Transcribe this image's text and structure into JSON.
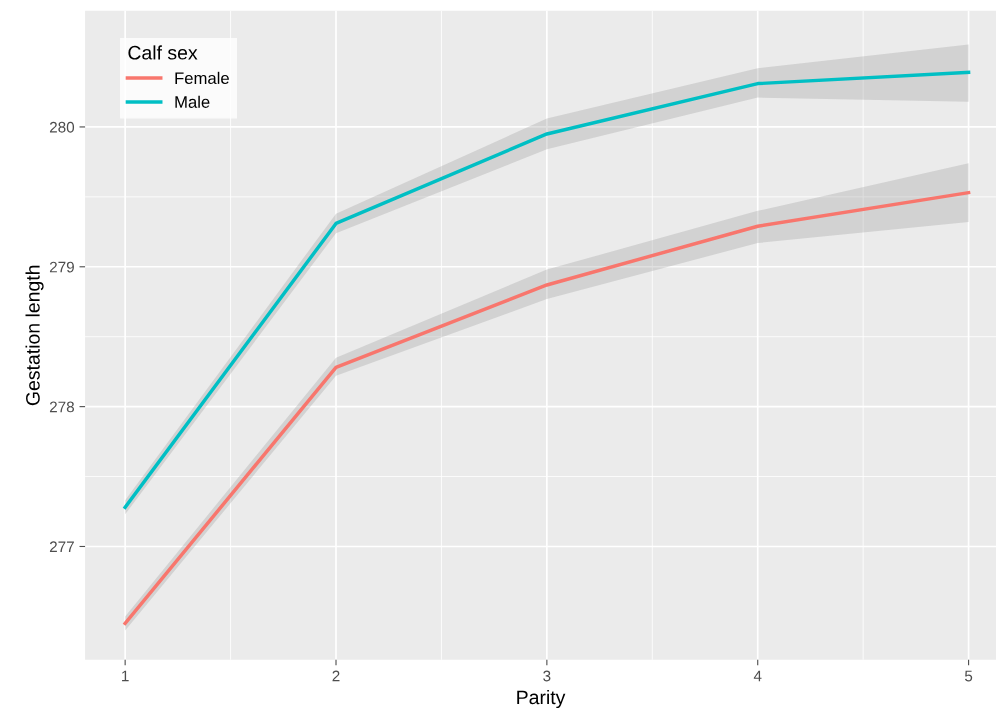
{
  "chart_data": {
    "type": "line",
    "xlabel": "Parity",
    "ylabel": "Gestation length",
    "legend_title": "Calf sex",
    "x": [
      1,
      2,
      3,
      4,
      5
    ],
    "series": [
      {
        "name": "Female",
        "color": "#f8766d",
        "values": [
          276.45,
          278.28,
          278.87,
          279.29,
          279.53
        ],
        "lower": [
          276.4,
          278.22,
          278.77,
          279.17,
          279.32
        ],
        "upper": [
          276.5,
          278.35,
          278.98,
          279.4,
          279.74
        ]
      },
      {
        "name": "Male",
        "color": "#00bfc4",
        "values": [
          277.28,
          279.31,
          279.95,
          280.31,
          280.39
        ],
        "lower": [
          277.23,
          279.24,
          279.84,
          280.21,
          280.18
        ],
        "upper": [
          277.33,
          279.38,
          280.06,
          280.42,
          280.59
        ]
      }
    ],
    "xlim": [
      0.81,
      5.13
    ],
    "ylim": [
      276.19,
      280.83
    ],
    "xticks": [
      1,
      2,
      3,
      4,
      5
    ],
    "yticks": [
      277,
      278,
      279,
      280
    ],
    "grid": true,
    "legend": "top left",
    "line_style": "solid",
    "marker": "none"
  }
}
